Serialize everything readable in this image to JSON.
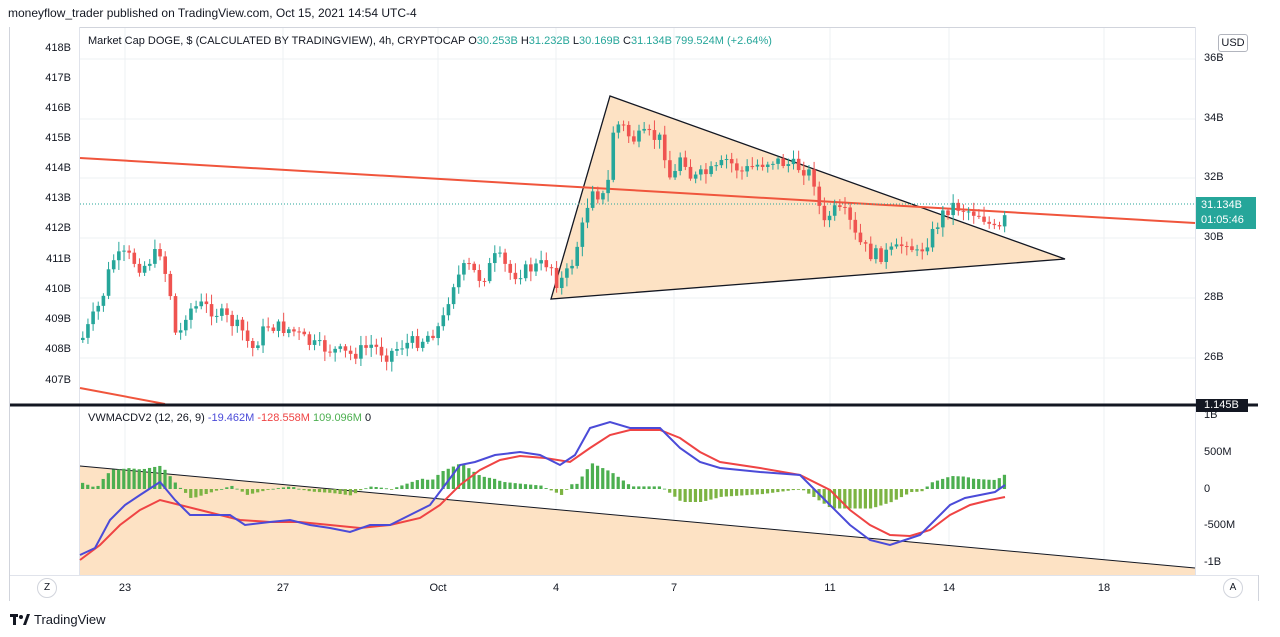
{
  "header": {
    "publisher_line": "moneyflow_trader published on TradingView.com, Oct 15, 2021 14:54 UTC-4"
  },
  "legend": {
    "symbol": "Market Cap DOGE, $ (CALCULATED BY TRADINGVIEW), 4h, CRYPTOCAP",
    "o_label": "O",
    "o": "30.253B",
    "h_label": "H",
    "h": "31.232B",
    "l_label": "L",
    "l": "30.169B",
    "c_label": "C",
    "c": "31.134B",
    "change": "799.524M (+2.64%)"
  },
  "currency_button": "USD",
  "left_scale": [
    "418B",
    "417B",
    "416B",
    "415B",
    "414B",
    "413B",
    "412B",
    "411B",
    "410B",
    "409B",
    "408B",
    "407B"
  ],
  "right_scale": [
    "36B",
    "34B",
    "32B",
    "30B",
    "28B",
    "26B"
  ],
  "price_label": {
    "value": "31.134B",
    "countdown": "01:05:46"
  },
  "macd": {
    "name": "VWMACDV2 (12, 26, 9)",
    "macd_value": "-19.462M",
    "signal_value": "-128.558M",
    "hist_value": "109.096M",
    "zero_value": "0",
    "scale": [
      "1B",
      "500M",
      "0",
      "-500M",
      "-1B"
    ],
    "label": "1.145B"
  },
  "time_axis": [
    "23",
    "27",
    "Oct",
    "4",
    "7",
    "11",
    "14",
    "18"
  ],
  "buttons": {
    "zoom": "Z",
    "auto": "A"
  },
  "brand": "TradingView",
  "colors": {
    "up": "#26a69a",
    "down": "#ef5350",
    "triangle_fill": "#fde2c4",
    "macd": "#4b4bd8",
    "signal": "#ef4444",
    "hist_pos": "#4caf50"
  }
}
